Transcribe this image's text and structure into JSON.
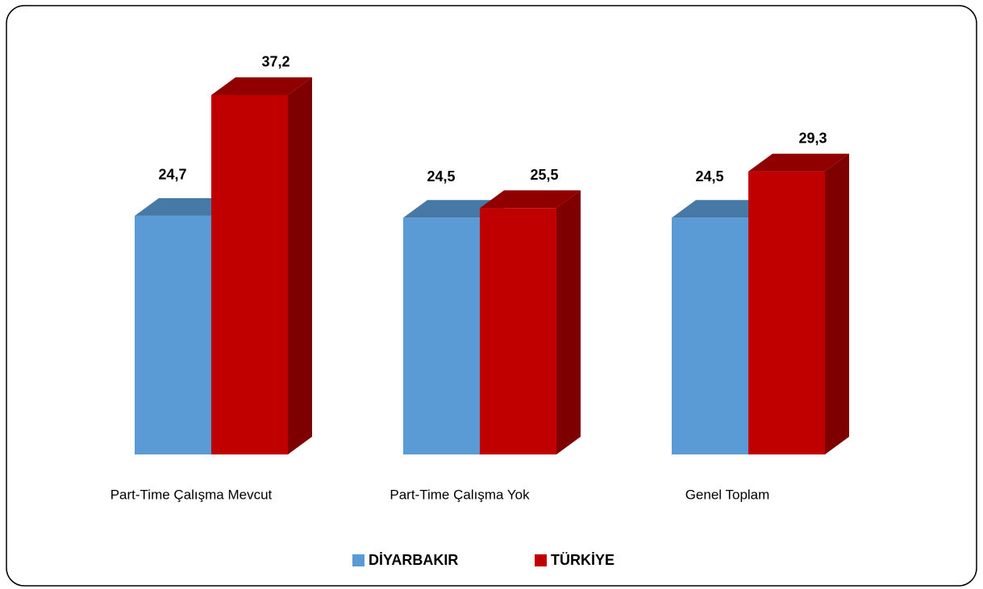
{
  "chart_data": {
    "type": "bar3d",
    "categories": [
      "Part-Time Çalışma Mevcut",
      "Part-Time Çalışma Yok",
      "Genel Toplam"
    ],
    "series": [
      {
        "name": "DİYARBAKIR",
        "color": "#5b9bd5",
        "values": [
          24.7,
          24.5,
          24.5
        ],
        "value_labels": [
          "24,7",
          "24,5",
          "24,5"
        ]
      },
      {
        "name": "TÜRKİYE",
        "color": "#c00000",
        "values": [
          37.2,
          25.5,
          29.3
        ],
        "value_labels": [
          "37,2",
          "25,5",
          "29,3"
        ]
      }
    ],
    "legend": "bottom"
  }
}
